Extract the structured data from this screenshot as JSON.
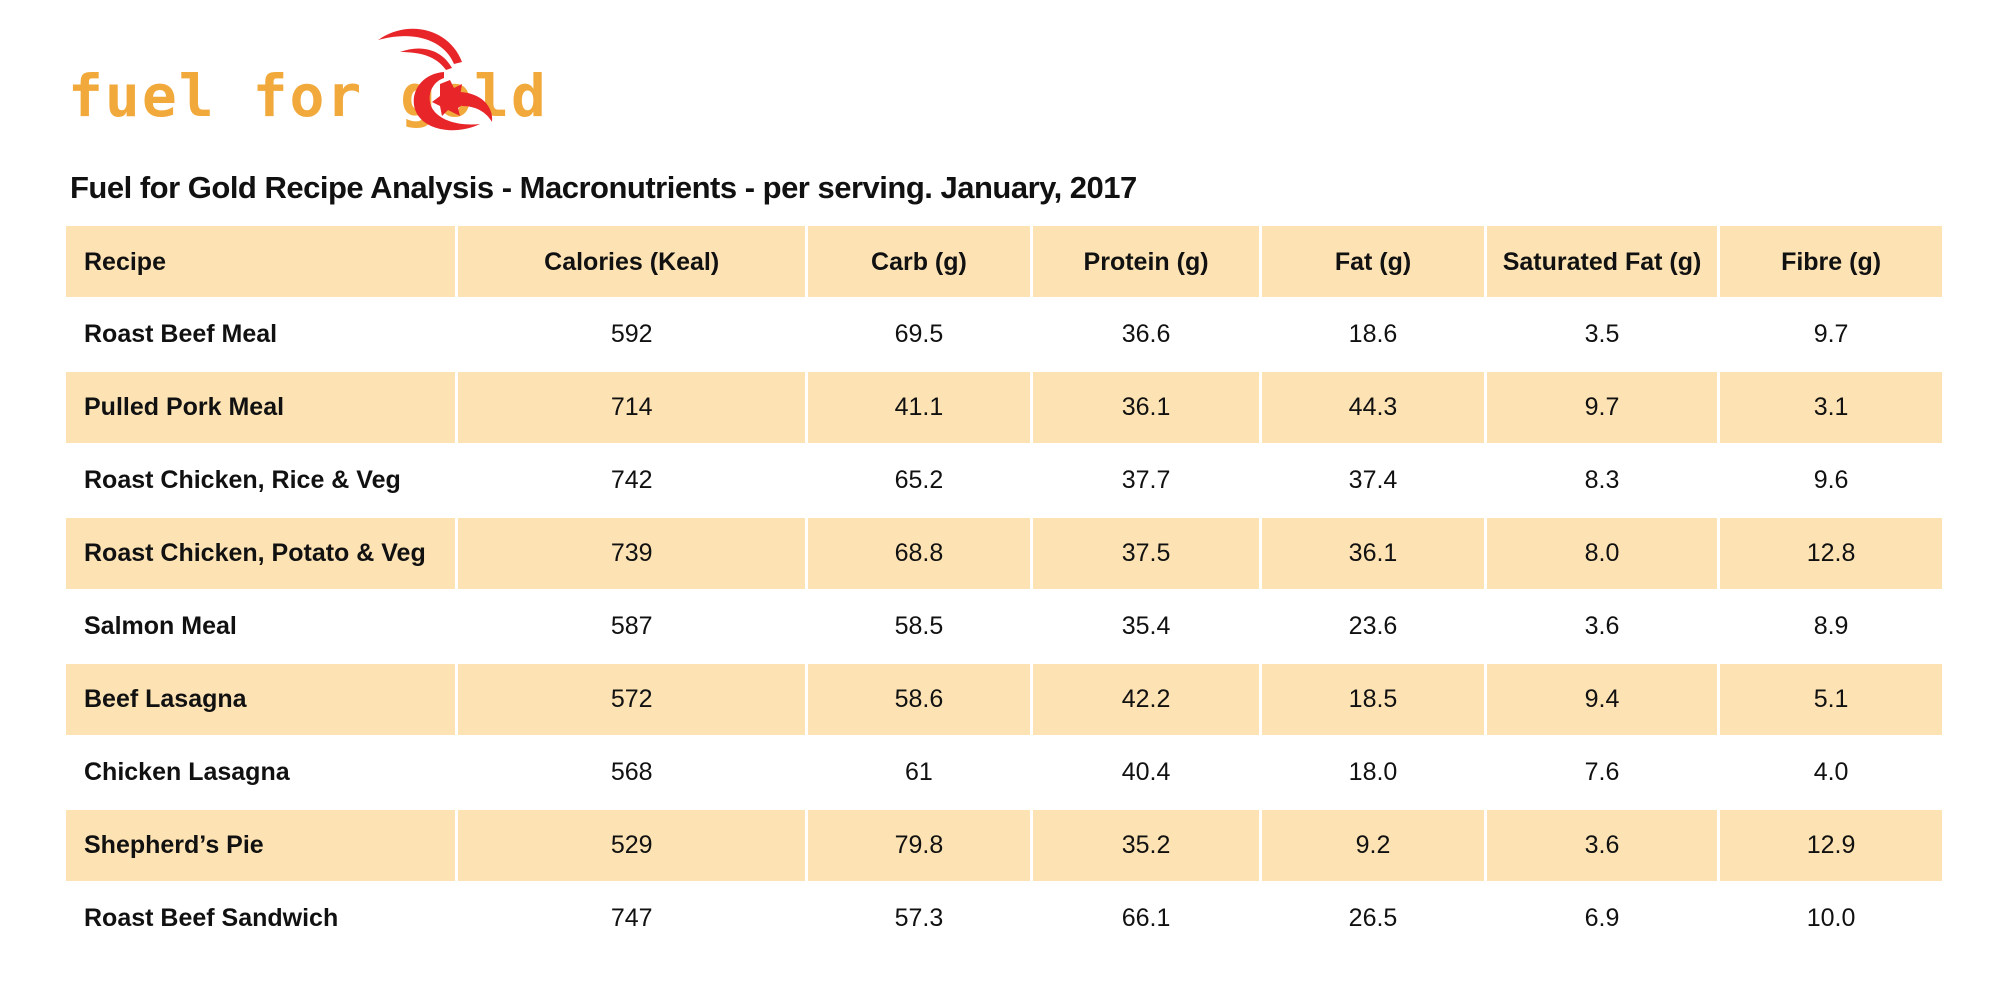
{
  "header": {
    "logo": "fuel for gold",
    "title": "Fuel for Gold Recipe Analysis - Macronutrients - per serving. January, 2017"
  },
  "table": {
    "columns": [
      "Recipe",
      "Calories (Keal)",
      "Carb (g)",
      "Protein (g)",
      "Fat (g)",
      "Saturated Fat (g)",
      "Fibre (g)"
    ],
    "rows": [
      [
        "Roast Beef Meal",
        "592",
        "69.5",
        "36.6",
        "18.6",
        "3.5",
        "9.7"
      ],
      [
        "Pulled Pork Meal",
        "714",
        "41.1",
        "36.1",
        "44.3",
        "9.7",
        "3.1"
      ],
      [
        "Roast Chicken, Rice & Veg",
        "742",
        "65.2",
        "37.7",
        "37.4",
        "8.3",
        "9.6"
      ],
      [
        "Roast Chicken, Potato & Veg",
        "739",
        "68.8",
        "37.5",
        "36.1",
        "8.0",
        "12.8"
      ],
      [
        "Salmon Meal",
        "587",
        "58.5",
        "35.4",
        "23.6",
        "3.6",
        "8.9"
      ],
      [
        "Beef Lasagna",
        "572",
        "58.6",
        "42.2",
        "18.5",
        "9.4",
        "5.1"
      ],
      [
        "Chicken Lasagna",
        "568",
        "61",
        "40.4",
        "18.0",
        "7.6",
        "4.0"
      ],
      [
        "Shepherd’s Pie",
        "529",
        "79.8",
        "35.2",
        "9.2",
        "3.6",
        "12.9"
      ],
      [
        "Roast Beef Sandwich",
        "747",
        "57.3",
        "66.1",
        "26.5",
        "6.9",
        "10.0"
      ]
    ]
  }
}
